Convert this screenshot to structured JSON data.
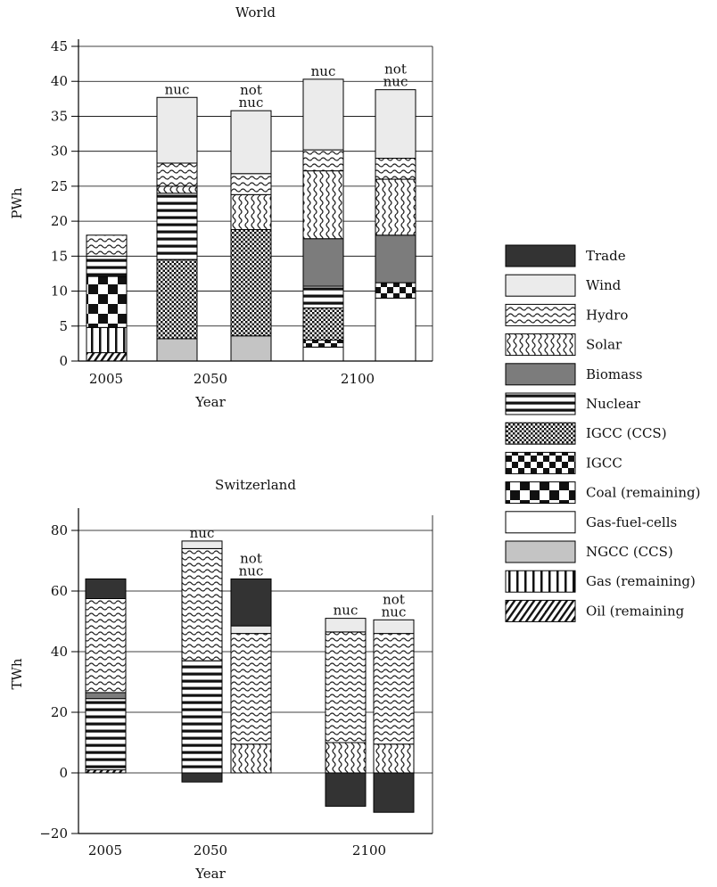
{
  "chart_data": [
    {
      "type": "bar",
      "stacked": true,
      "title": "World",
      "xlabel": "Year",
      "ylabel": "PWh",
      "ylim": [
        0,
        45
      ],
      "yticks": [
        0,
        5,
        10,
        15,
        20,
        25,
        30,
        35,
        40,
        45
      ],
      "grid": true,
      "groups": [
        "2005",
        "2050",
        "2100"
      ],
      "bars": [
        {
          "group": "2005",
          "label": "",
          "segments": [
            {
              "series": "Oil (remaining",
              "value": 1.2
            },
            {
              "series": "Gas (remaining)",
              "value": 3.6
            },
            {
              "series": "Coal (remaining)",
              "value": 7.3
            },
            {
              "series": "Nuclear",
              "value": 2.9
            },
            {
              "series": "Hydro",
              "value": 3.0
            }
          ]
        },
        {
          "group": "2050",
          "label": "nuc",
          "segments": [
            {
              "series": "NGCC (CCS)",
              "value": 3.2
            },
            {
              "series": "IGCC (CCS)",
              "value": 11.3
            },
            {
              "series": "Nuclear",
              "value": 9.5
            },
            {
              "series": "Solar",
              "value": 1.0
            },
            {
              "series": "Hydro",
              "value": 3.3
            },
            {
              "series": "Wind",
              "value": 9.4
            }
          ]
        },
        {
          "group": "2050",
          "label": "not nuc",
          "segments": [
            {
              "series": "NGCC (CCS)",
              "value": 3.6
            },
            {
              "series": "IGCC (CCS)",
              "value": 15.2
            },
            {
              "series": "Solar",
              "value": 5.0
            },
            {
              "series": "Hydro",
              "value": 3.0
            },
            {
              "series": "Wind",
              "value": 9.0
            }
          ]
        },
        {
          "group": "2100",
          "label": "nuc",
          "segments": [
            {
              "series": "Gas-fuel-cells",
              "value": 2.0
            },
            {
              "series": "IGCC",
              "value": 1.0
            },
            {
              "series": "IGCC (CCS)",
              "value": 4.6
            },
            {
              "series": "Nuclear",
              "value": 3.1
            },
            {
              "series": "Biomass",
              "value": 6.8
            },
            {
              "series": "Solar",
              "value": 9.7
            },
            {
              "series": "Hydro",
              "value": 3.0
            },
            {
              "series": "Wind",
              "value": 10.1
            }
          ]
        },
        {
          "group": "2100",
          "label": "not nuc",
          "segments": [
            {
              "series": "Gas-fuel-cells",
              "value": 9.0
            },
            {
              "series": "IGCC",
              "value": 2.2
            },
            {
              "series": "Biomass",
              "value": 6.8
            },
            {
              "series": "Solar",
              "value": 8.0
            },
            {
              "series": "Hydro",
              "value": 3.0
            },
            {
              "series": "Wind",
              "value": 9.8
            }
          ]
        }
      ]
    },
    {
      "type": "bar",
      "stacked": true,
      "title": "Switzerland",
      "xlabel": "Year",
      "ylabel": "TWh",
      "ylim": [
        -20,
        85
      ],
      "yticks": [
        -20,
        0,
        20,
        40,
        60,
        80
      ],
      "grid": true,
      "groups": [
        "2005",
        "2050",
        "2100"
      ],
      "bars": [
        {
          "group": "2005",
          "label": "",
          "segments": [
            {
              "series": "Oil (remaining",
              "value": 1.0
            },
            {
              "series": "Nuclear",
              "value": 23.5
            },
            {
              "series": "Biomass",
              "value": 2.0
            },
            {
              "series": "Hydro",
              "value": 31.0
            },
            {
              "series": "Trade",
              "value": 6.5
            }
          ]
        },
        {
          "group": "2050",
          "label": "nuc",
          "segments": [
            {
              "series": "Trade",
              "value": -3.0
            },
            {
              "series": "Nuclear",
              "value": 37.0
            },
            {
              "series": "Hydro",
              "value": 37.0
            },
            {
              "series": "Wind",
              "value": 2.5
            }
          ]
        },
        {
          "group": "2050",
          "label": "not nuc",
          "segments": [
            {
              "series": "Solar",
              "value": 9.5
            },
            {
              "series": "Hydro",
              "value": 36.5
            },
            {
              "series": "Wind",
              "value": 2.5
            },
            {
              "series": "Trade",
              "value": 15.5
            }
          ]
        },
        {
          "group": "2100",
          "label": "nuc",
          "segments": [
            {
              "series": "Trade",
              "value": -11.0
            },
            {
              "series": "Solar",
              "value": 10.0
            },
            {
              "series": "Hydro",
              "value": 36.5
            },
            {
              "series": "Wind",
              "value": 4.5
            }
          ]
        },
        {
          "group": "2100",
          "label": "not nuc",
          "segments": [
            {
              "series": "Trade",
              "value": -13.0
            },
            {
              "series": "Solar",
              "value": 9.5
            },
            {
              "series": "Hydro",
              "value": 36.5
            },
            {
              "series": "Wind",
              "value": 4.5
            }
          ]
        }
      ]
    }
  ],
  "legend": {
    "placement": "right",
    "items": [
      {
        "name": "Trade",
        "pattern": "solid-dark",
        "color": "#333333"
      },
      {
        "name": "Wind",
        "pattern": "solid-light",
        "color": "#ebebeb"
      },
      {
        "name": "Hydro",
        "pattern": "waves-horizontal",
        "color": "#222222"
      },
      {
        "name": "Solar",
        "pattern": "waves-vertical",
        "color": "#222222"
      },
      {
        "name": "Biomass",
        "pattern": "solid-mid",
        "color": "#7c7c7c"
      },
      {
        "name": "Nuclear",
        "pattern": "horizontal-stripes",
        "color": "#111111"
      },
      {
        "name": "IGCC (CCS)",
        "pattern": "fine-checker",
        "color": "#111111"
      },
      {
        "name": "IGCC",
        "pattern": "medium-checker",
        "color": "#111111"
      },
      {
        "name": "Coal (remaining)",
        "pattern": "large-checker",
        "color": "#111111"
      },
      {
        "name": "Gas-fuel-cells",
        "pattern": "white",
        "color": "#ffffff"
      },
      {
        "name": "NGCC (CCS)",
        "pattern": "solid-silver",
        "color": "#c4c4c4"
      },
      {
        "name": "Gas (remaining)",
        "pattern": "vertical-stripes",
        "color": "#111111"
      },
      {
        "name": "Oil (remaining",
        "pattern": "diagonal-stripes",
        "color": "#111111"
      }
    ]
  }
}
